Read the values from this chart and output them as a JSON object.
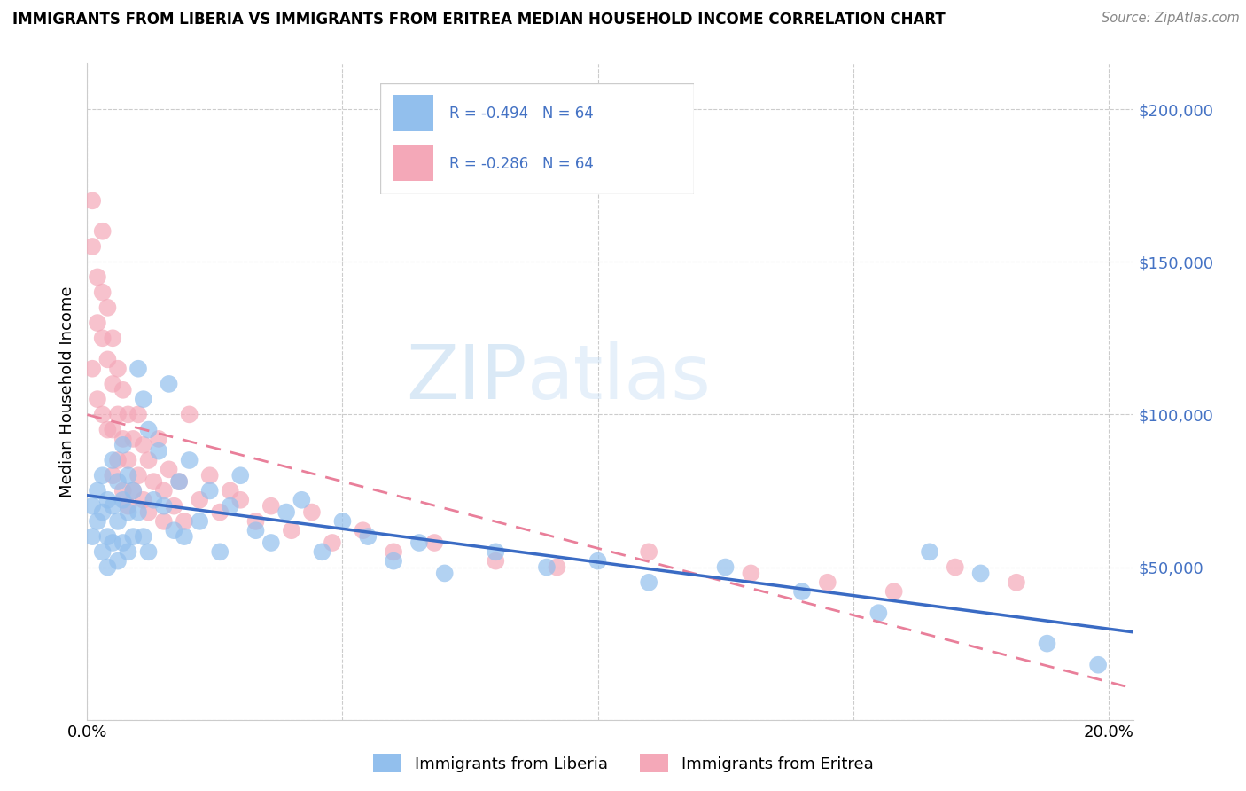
{
  "title": "IMMIGRANTS FROM LIBERIA VS IMMIGRANTS FROM ERITREA MEDIAN HOUSEHOLD INCOME CORRELATION CHART",
  "source": "Source: ZipAtlas.com",
  "ylabel": "Median Household Income",
  "legend_label1": "Immigrants from Liberia",
  "legend_label2": "Immigrants from Eritrea",
  "r1": -0.494,
  "r2": -0.286,
  "n1": 64,
  "n2": 64,
  "color_liberia": "#92BFED",
  "color_eritrea": "#F4A8B8",
  "line_color_liberia": "#3A6BC4",
  "line_color_eritrea": "#E97F9A",
  "watermark_zip": "ZIP",
  "watermark_atlas": "atlas",
  "xlim": [
    0.0,
    0.205
  ],
  "ylim": [
    0,
    215000
  ],
  "yticks": [
    0,
    50000,
    100000,
    150000,
    200000
  ],
  "liberia_x": [
    0.001,
    0.001,
    0.002,
    0.002,
    0.003,
    0.003,
    0.003,
    0.004,
    0.004,
    0.004,
    0.005,
    0.005,
    0.005,
    0.006,
    0.006,
    0.006,
    0.007,
    0.007,
    0.007,
    0.008,
    0.008,
    0.008,
    0.009,
    0.009,
    0.01,
    0.01,
    0.011,
    0.011,
    0.012,
    0.012,
    0.013,
    0.014,
    0.015,
    0.016,
    0.017,
    0.018,
    0.019,
    0.02,
    0.022,
    0.024,
    0.026,
    0.028,
    0.03,
    0.033,
    0.036,
    0.039,
    0.042,
    0.046,
    0.05,
    0.055,
    0.06,
    0.065,
    0.07,
    0.08,
    0.09,
    0.1,
    0.11,
    0.125,
    0.14,
    0.155,
    0.165,
    0.175,
    0.188,
    0.198
  ],
  "liberia_y": [
    70000,
    60000,
    75000,
    65000,
    80000,
    68000,
    55000,
    72000,
    60000,
    50000,
    85000,
    70000,
    58000,
    78000,
    65000,
    52000,
    90000,
    72000,
    58000,
    80000,
    68000,
    55000,
    75000,
    60000,
    115000,
    68000,
    105000,
    60000,
    95000,
    55000,
    72000,
    88000,
    70000,
    110000,
    62000,
    78000,
    60000,
    85000,
    65000,
    75000,
    55000,
    70000,
    80000,
    62000,
    58000,
    68000,
    72000,
    55000,
    65000,
    60000,
    52000,
    58000,
    48000,
    55000,
    50000,
    52000,
    45000,
    50000,
    42000,
    35000,
    55000,
    48000,
    25000,
    18000
  ],
  "eritrea_x": [
    0.001,
    0.001,
    0.001,
    0.002,
    0.002,
    0.002,
    0.003,
    0.003,
    0.003,
    0.003,
    0.004,
    0.004,
    0.004,
    0.005,
    0.005,
    0.005,
    0.005,
    0.006,
    0.006,
    0.006,
    0.007,
    0.007,
    0.007,
    0.008,
    0.008,
    0.008,
    0.009,
    0.009,
    0.01,
    0.01,
    0.011,
    0.011,
    0.012,
    0.012,
    0.013,
    0.014,
    0.015,
    0.015,
    0.016,
    0.017,
    0.018,
    0.019,
    0.02,
    0.022,
    0.024,
    0.026,
    0.028,
    0.03,
    0.033,
    0.036,
    0.04,
    0.044,
    0.048,
    0.054,
    0.06,
    0.068,
    0.08,
    0.092,
    0.11,
    0.13,
    0.145,
    0.158,
    0.17,
    0.182
  ],
  "eritrea_y": [
    170000,
    155000,
    115000,
    145000,
    130000,
    105000,
    160000,
    140000,
    125000,
    100000,
    135000,
    118000,
    95000,
    125000,
    110000,
    95000,
    80000,
    115000,
    100000,
    85000,
    108000,
    92000,
    75000,
    100000,
    85000,
    70000,
    92000,
    75000,
    100000,
    80000,
    90000,
    72000,
    85000,
    68000,
    78000,
    92000,
    75000,
    65000,
    82000,
    70000,
    78000,
    65000,
    100000,
    72000,
    80000,
    68000,
    75000,
    72000,
    65000,
    70000,
    62000,
    68000,
    58000,
    62000,
    55000,
    58000,
    52000,
    50000,
    55000,
    48000,
    45000,
    42000,
    50000,
    45000
  ]
}
